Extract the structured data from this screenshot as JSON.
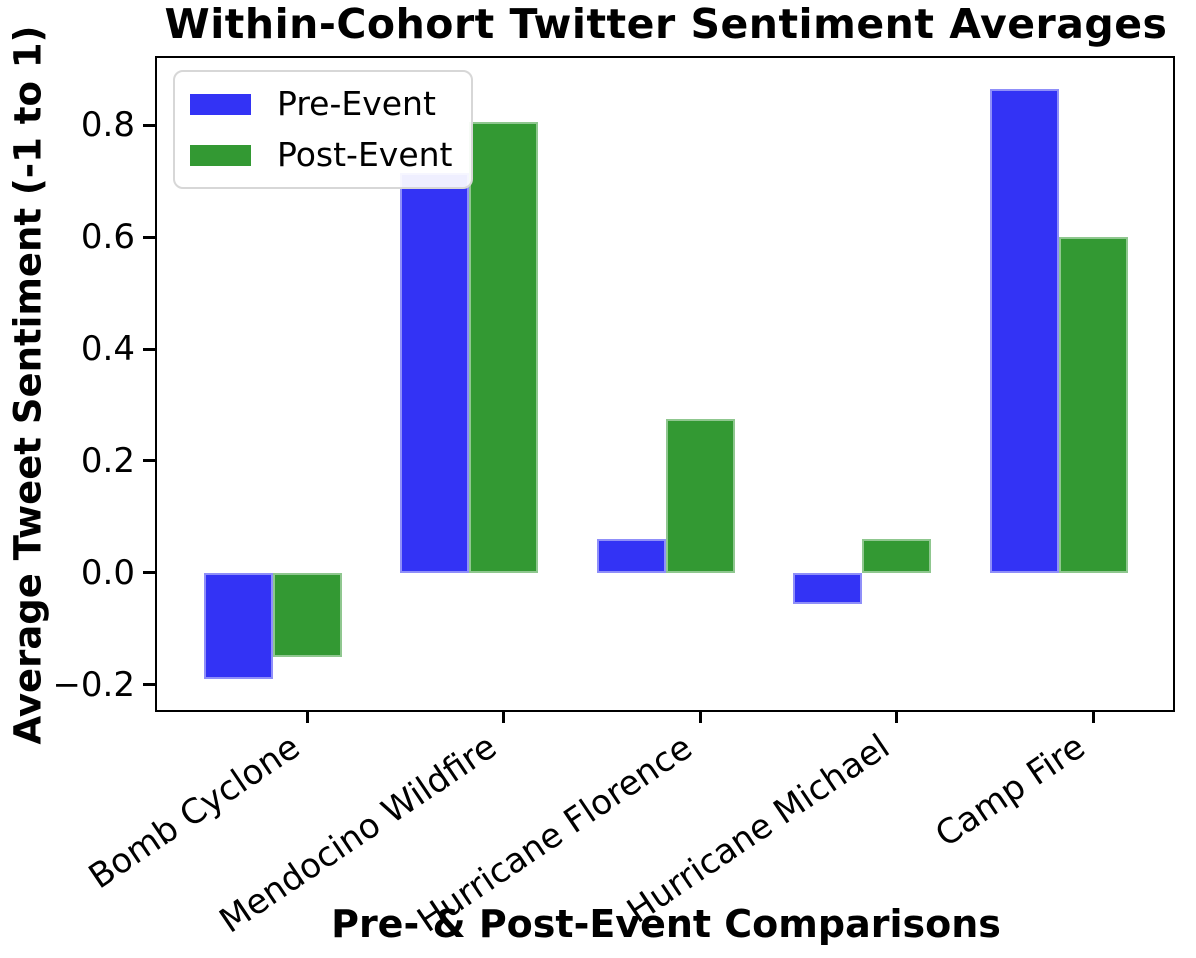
{
  "title": "Within-Cohort Twitter Sentiment Averages",
  "axes": {
    "x_label": "Pre- & Post-Event Comparisons",
    "y_label": "Average Tweet Sentiment (-1 to 1)"
  },
  "legend": {
    "entries": [
      {
        "label": "Pre-Event",
        "color": "#3333f5"
      },
      {
        "label": "Post-Event",
        "color": "#339933"
      }
    ]
  },
  "chart_data": {
    "type": "bar",
    "title": "Within-Cohort Twitter Sentiment Averages",
    "xlabel": "Pre- & Post-Event Comparisons",
    "ylabel": "Average Tweet Sentiment (-1 to 1)",
    "categories": [
      "Bomb Cyclone",
      "Mendocino Wildfire",
      "Hurricane Florence",
      "Hurricane Michael",
      "Camp Fire"
    ],
    "series": [
      {
        "name": "Pre-Event",
        "color": "#3333f5",
        "values": [
          -0.19,
          0.715,
          0.06,
          -0.055,
          0.865
        ]
      },
      {
        "name": "Post-Event",
        "color": "#339933",
        "values": [
          -0.15,
          0.805,
          0.275,
          0.06,
          0.6
        ]
      }
    ],
    "ylim": [
      -0.245,
      0.92
    ],
    "y_ticks": [
      {
        "label": "0.8",
        "value": 0.8
      },
      {
        "label": "0.6",
        "value": 0.6
      },
      {
        "label": "0.4",
        "value": 0.4
      },
      {
        "label": "0.2",
        "value": 0.2
      },
      {
        "label": "0.0",
        "value": 0.0
      },
      {
        "label": "−0.2",
        "value": -0.2
      }
    ],
    "x_tick_rotation_deg": 34,
    "legend_position": "upper left",
    "grid": false
  }
}
